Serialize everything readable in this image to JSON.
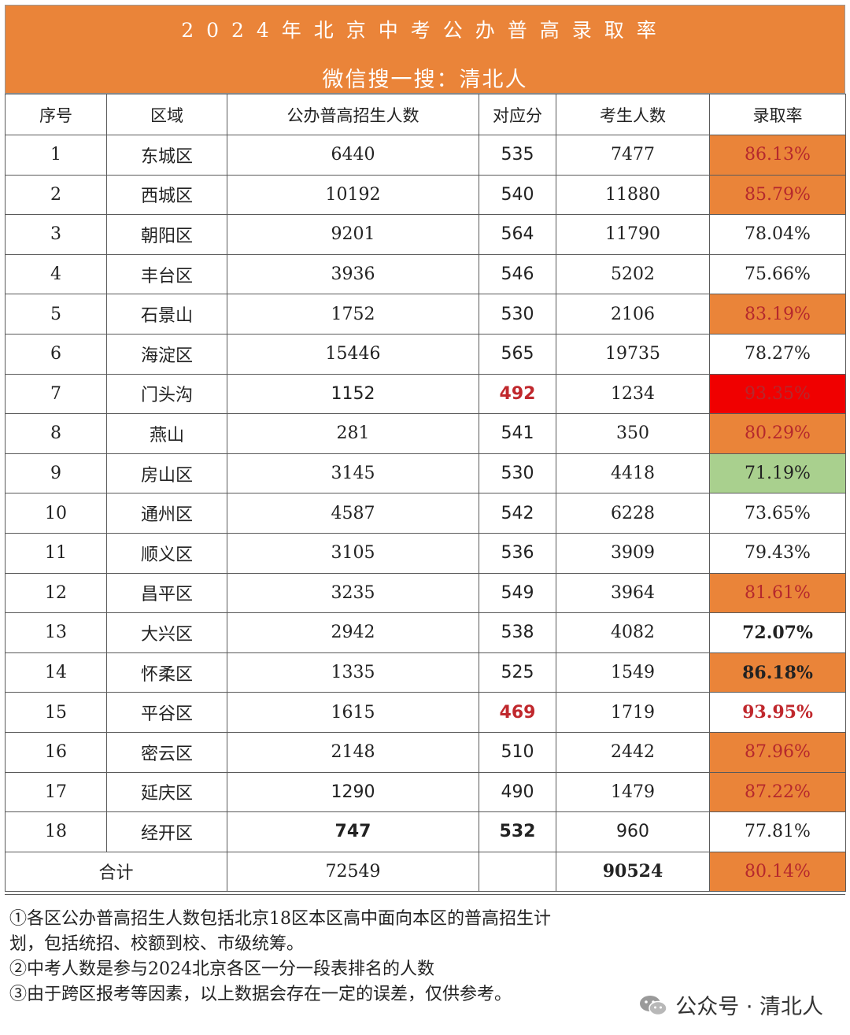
{
  "banner": {
    "title": "2024年北京中考公办普高录取率",
    "subtitle": "微信搜一搜：清北人"
  },
  "headers": [
    "序号",
    "区域",
    "公办普高招生人数",
    "对应分",
    "考生人数",
    "录取率"
  ],
  "rows": [
    {
      "no": "1",
      "district": "东城区",
      "enroll": "6440",
      "score": "535",
      "students": "7477",
      "rate": "86.13%"
    },
    {
      "no": "2",
      "district": "西城区",
      "enroll": "10192",
      "score": "540",
      "students": "11880",
      "rate": "85.79%"
    },
    {
      "no": "3",
      "district": "朝阳区",
      "enroll": "9201",
      "score": "564",
      "students": "11790",
      "rate": "78.04%"
    },
    {
      "no": "4",
      "district": "丰台区",
      "enroll": "3936",
      "score": "546",
      "students": "5202",
      "rate": "75.66%"
    },
    {
      "no": "5",
      "district": "石景山",
      "enroll": "1752",
      "score": "530",
      "students": "2106",
      "rate": "83.19%"
    },
    {
      "no": "6",
      "district": "海淀区",
      "enroll": "15446",
      "score": "565",
      "students": "19735",
      "rate": "78.27%"
    },
    {
      "no": "7",
      "district": "门头沟",
      "enroll": "1152",
      "score": "492",
      "students": "1234",
      "rate": "93.35%"
    },
    {
      "no": "8",
      "district": "燕山",
      "enroll": "281",
      "score": "541",
      "students": "350",
      "rate": "80.29%"
    },
    {
      "no": "9",
      "district": "房山区",
      "enroll": "3145",
      "score": "530",
      "students": "4418",
      "rate": "71.19%"
    },
    {
      "no": "10",
      "district": "通州区",
      "enroll": "4587",
      "score": "542",
      "students": "6228",
      "rate": "73.65%"
    },
    {
      "no": "11",
      "district": "顺义区",
      "enroll": "3105",
      "score": "536",
      "students": "3909",
      "rate": "79.43%"
    },
    {
      "no": "12",
      "district": "昌平区",
      "enroll": "3235",
      "score": "549",
      "students": "3964",
      "rate": "81.61%"
    },
    {
      "no": "13",
      "district": "大兴区",
      "enroll": "2942",
      "score": "538",
      "students": "4082",
      "rate": "72.07%"
    },
    {
      "no": "14",
      "district": "怀柔区",
      "enroll": "1335",
      "score": "525",
      "students": "1549",
      "rate": "86.18%"
    },
    {
      "no": "15",
      "district": "平谷区",
      "enroll": "1615",
      "score": "469",
      "students": "1719",
      "rate": "93.95%"
    },
    {
      "no": "16",
      "district": "密云区",
      "enroll": "2148",
      "score": "510",
      "students": "2442",
      "rate": "87.96%"
    },
    {
      "no": "17",
      "district": "延庆区",
      "enroll": "1290",
      "score": "490",
      "students": "1479",
      "rate": "87.22%"
    },
    {
      "no": "18",
      "district": "经开区",
      "enroll": "747",
      "score": "532",
      "students": "960",
      "rate": "77.81%"
    }
  ],
  "total": {
    "label": "合计",
    "enroll": "72549",
    "score": "",
    "students": "90524",
    "rate": "80.14%"
  },
  "notes": [
    "①各区公办普高招生人数包括北京18区本区高中面向本区的普高招生计",
    "划，包括统招、校额到校、市级统筹。",
    "②中考人数是参与2024北京各区一分一段表排名的人数",
    "③由于跨区报考等因素，以上数据会存在一定的误差，仅供参考。"
  ],
  "watermark": "公众号 · 清北人",
  "colors": {
    "orange": "#ea8439",
    "red": "#f00000",
    "green": "#a9d08e",
    "red_text": "#c0282d"
  }
}
